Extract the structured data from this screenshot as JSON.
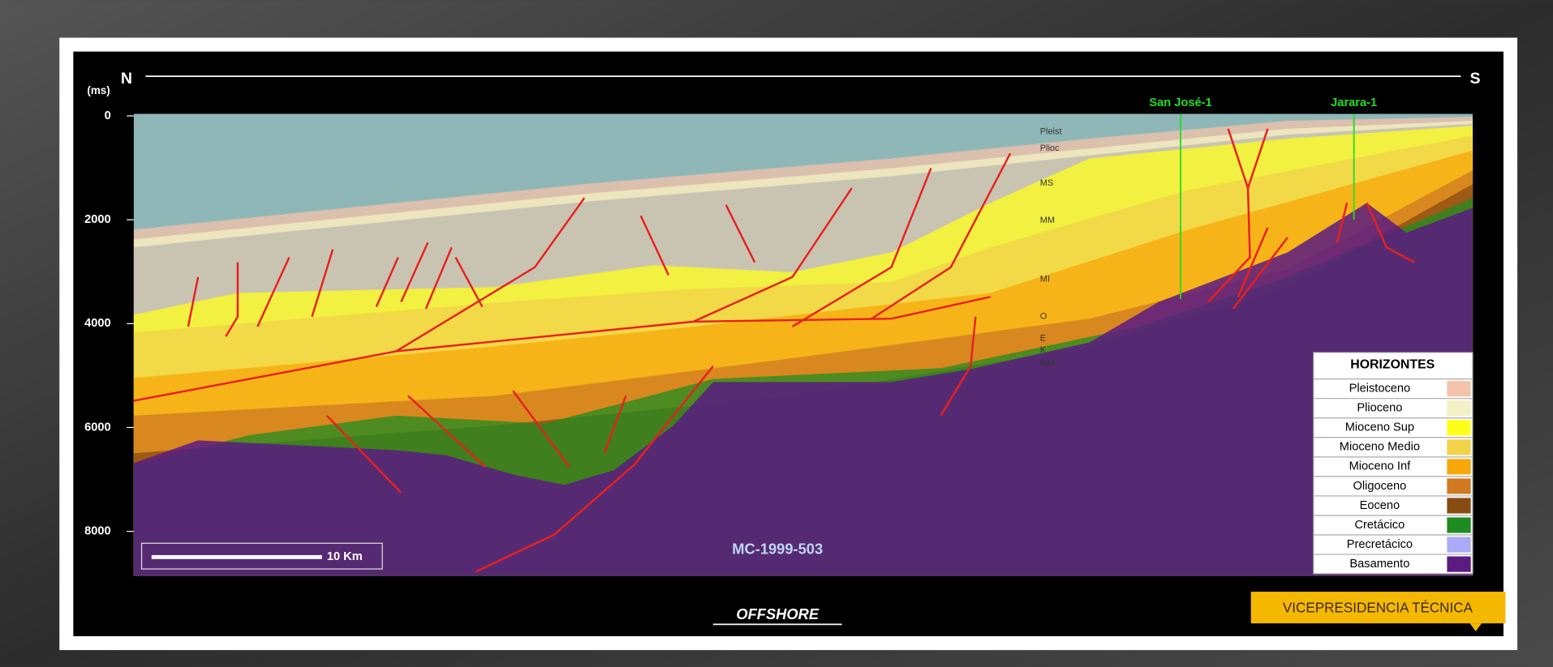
{
  "header": {
    "north": "N",
    "south": "S",
    "line_name": "MC-1999-503",
    "area": "OFFSHORE",
    "badge": "VICEPRESIDENCIA TÉCNICA"
  },
  "axis": {
    "unit": "(ms)",
    "lim": [
      0,
      8850
    ],
    "ticks": [
      0,
      2000,
      4000,
      6000,
      8000
    ]
  },
  "wells": [
    {
      "name": "San José-1"
    },
    {
      "name": "Jarara-1"
    }
  ],
  "horizon_labels": [
    "Pleist",
    "Plioc",
    "MS",
    "MM",
    "MI",
    "O",
    "E",
    "K",
    "Bas"
  ],
  "scale_bar": "10 Km",
  "legend": {
    "title": "HORIZONTES",
    "items": [
      {
        "name": "Pleistoceno",
        "color": "#f4c3aa"
      },
      {
        "name": "Plioceno",
        "color": "#f3f1c4"
      },
      {
        "name": "Mioceno Sup",
        "color": "#ffff1a"
      },
      {
        "name": "Mioceno Medio",
        "color": "#f2d24a"
      },
      {
        "name": "Mioceno Inf",
        "color": "#f7a70a"
      },
      {
        "name": "Oligoceno",
        "color": "#cf7a22"
      },
      {
        "name": "Eoceno",
        "color": "#8a4b12"
      },
      {
        "name": "Cretácico",
        "color": "#1f8c22"
      },
      {
        "name": "Precretácico",
        "color": "#aaaaf8"
      },
      {
        "name": "Basamento",
        "color": "#5b1b82"
      }
    ]
  }
}
